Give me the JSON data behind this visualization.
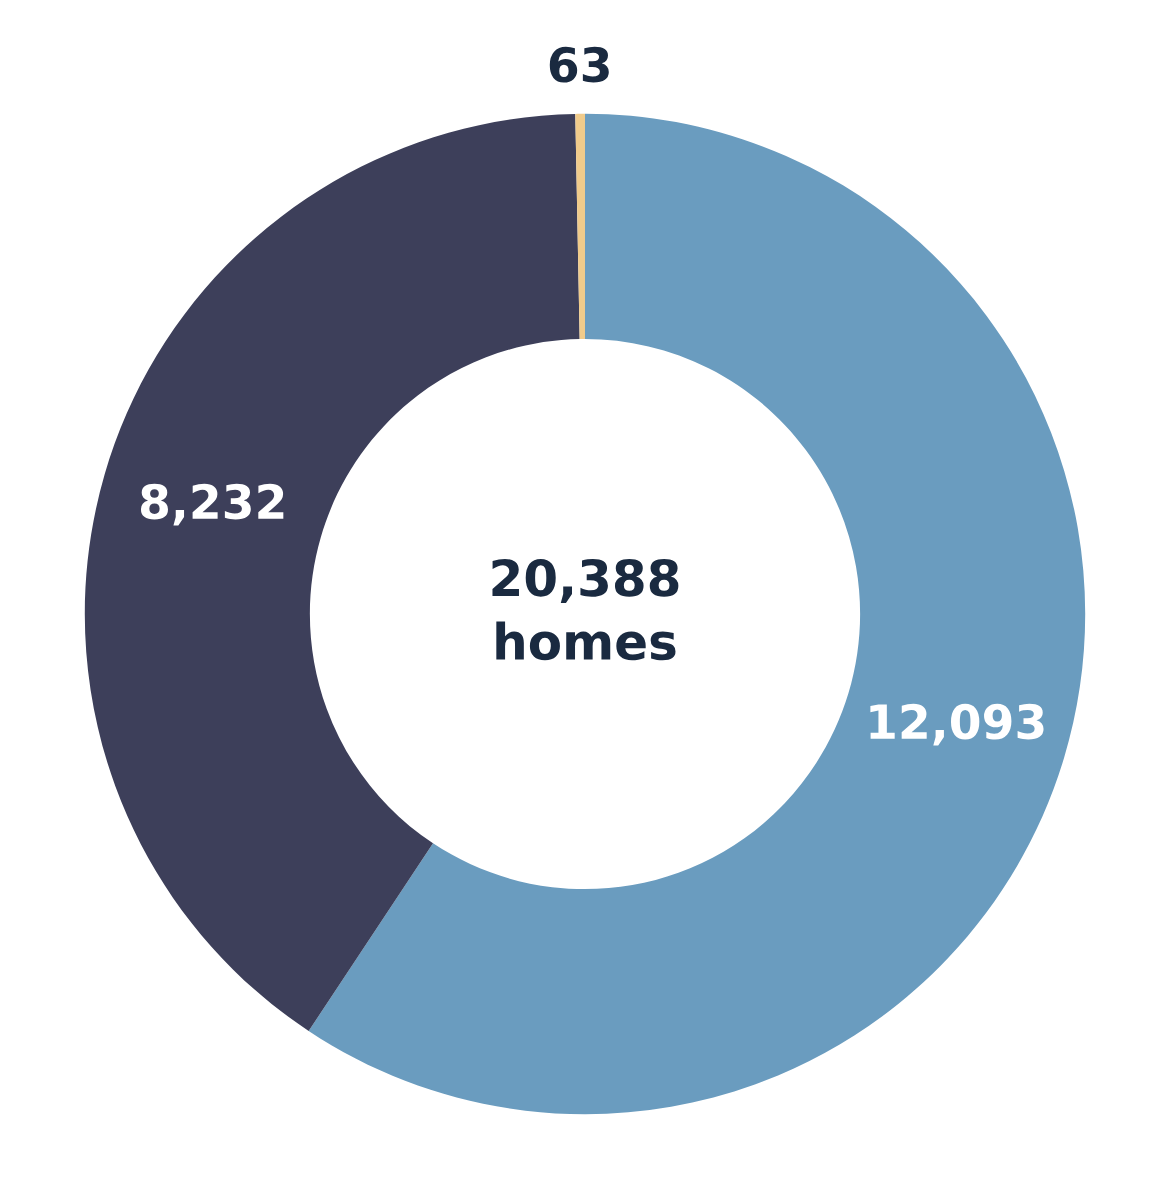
{
  "chart_data": {
    "type": "donut",
    "categories": [
      null,
      null,
      null
    ],
    "values": [
      12093,
      8232,
      63
    ],
    "value_labels": [
      "12,093",
      "8,232",
      "63"
    ],
    "colors": [
      "#6a9cbf",
      "#3d3f5a",
      "#f0cb8b"
    ],
    "annotations": [
      "20,388\nhomes"
    ],
    "legend": false
  }
}
